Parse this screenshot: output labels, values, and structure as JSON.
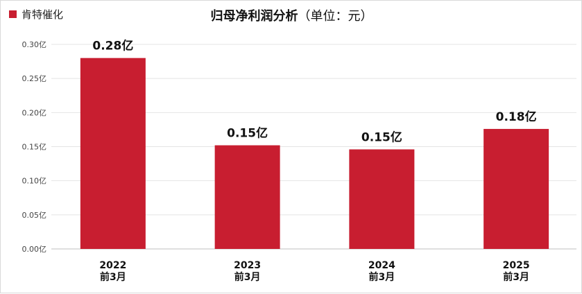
{
  "chart_data": {
    "type": "bar",
    "title": "归母净利润分析",
    "title_unit": "（单位：元）",
    "legend": {
      "label": "肯特催化",
      "position": "top-left"
    },
    "categories": [
      [
        "2022",
        "前3月"
      ],
      [
        "2023",
        "前3月"
      ],
      [
        "2024",
        "前3月"
      ],
      [
        "2025",
        "前3月"
      ]
    ],
    "series": [
      {
        "name": "肯特催化",
        "color": "#c81e30",
        "values": [
          0.28,
          0.152,
          0.146,
          0.176
        ]
      }
    ],
    "data_labels": [
      "0.28亿",
      "0.15亿",
      "0.15亿",
      "0.18亿"
    ],
    "ylim": [
      0,
      0.3
    ],
    "yticks": [
      "0.00亿",
      "0.05亿",
      "0.10亿",
      "0.15亿",
      "0.20亿",
      "0.25亿",
      "0.30亿"
    ],
    "grid": true,
    "xlabel": "",
    "ylabel": ""
  }
}
